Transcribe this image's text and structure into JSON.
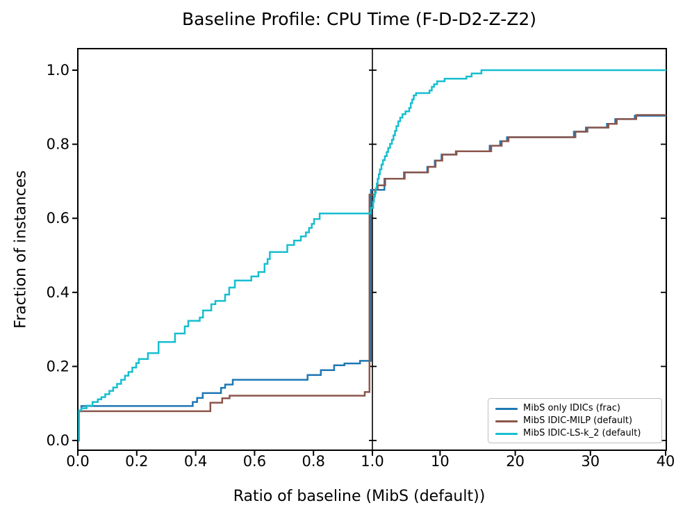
{
  "figure": {
    "title": "Baseline Profile: CPU Time (F-D-D2-Z-Z2)",
    "xlabel": "Ratio of baseline (MibS (default))",
    "ylabel": "Fraction of instances",
    "background_color": "#ffffff",
    "axis_color": "#000000"
  },
  "chart_data": {
    "type": "line",
    "subtype": "step-post performance profile with split x-axis",
    "title": "Baseline Profile: CPU Time (F-D-D2-Z-Z2)",
    "xlabel": "Ratio of baseline (MibS (default))",
    "ylabel": "Fraction of instances",
    "grid": false,
    "x_axis": {
      "left_panel": {
        "range": [
          0,
          1
        ],
        "scale": "linear",
        "ticks": [
          0.0,
          0.2,
          0.4,
          0.6,
          0.8,
          1.0
        ],
        "tick_labels": [
          "0.0",
          "0.2",
          "0.4",
          "0.6",
          "0.8",
          "1.0"
        ]
      },
      "right_panel": {
        "range": [
          1,
          40
        ],
        "scale": "linear",
        "ticks": [
          10,
          20,
          30,
          40
        ],
        "tick_labels": [
          "10",
          "20",
          "30",
          "40"
        ]
      }
    },
    "y_axis": {
      "range": [
        0,
        1
      ],
      "ticks": [
        0.0,
        0.2,
        0.4,
        0.6,
        0.8,
        1.0
      ],
      "tick_labels": [
        "0.0",
        "0.2",
        "0.4",
        "0.6",
        "0.8",
        "1.0"
      ],
      "ylim": [
        -0.026,
        1.058
      ]
    },
    "legend": {
      "position": "lower right",
      "entries": [
        {
          "label": "MibS only IDICs (frac)",
          "color": "#1f77b4"
        },
        {
          "label": "MibS IDIC-MILP (default)",
          "color": "#8c564b"
        },
        {
          "label": "MibS IDIC-LS-k_2 (default)",
          "color": "#17becf"
        }
      ]
    },
    "series": [
      {
        "name": "MibS only IDICs (frac)",
        "color": "#1f77b4",
        "steps": [
          [
            0.002,
            0
          ],
          [
            0.004,
            0.079
          ],
          [
            0.012,
            0.093
          ],
          [
            0.39,
            0.104
          ],
          [
            0.405,
            0.115
          ],
          [
            0.424,
            0.128
          ],
          [
            0.486,
            0.142
          ],
          [
            0.5,
            0.151
          ],
          [
            0.526,
            0.164
          ],
          [
            0.78,
            0.177
          ],
          [
            0.825,
            0.19
          ],
          [
            0.87,
            0.203
          ],
          [
            0.905,
            0.208
          ],
          [
            0.958,
            0.215
          ],
          [
            0.995,
            0.677
          ],
          [
            2.6,
            0.707
          ],
          [
            5.2,
            0.724
          ],
          [
            8.3,
            0.739
          ],
          [
            9.3,
            0.756
          ],
          [
            10.2,
            0.772
          ],
          [
            12.1,
            0.781
          ],
          [
            16.6,
            0.796
          ],
          [
            18.0,
            0.808
          ],
          [
            18.9,
            0.819
          ],
          [
            27.8,
            0.834
          ],
          [
            29.4,
            0.845
          ],
          [
            32.2,
            0.855
          ],
          [
            33.3,
            0.868
          ],
          [
            35.9,
            0.877
          ],
          [
            40,
            0.877
          ]
        ]
      },
      {
        "name": "MibS IDIC-MILP (default)",
        "color": "#8c564b",
        "steps": [
          [
            0.002,
            0
          ],
          [
            0.004,
            0.079
          ],
          [
            0.45,
            0.102
          ],
          [
            0.49,
            0.114
          ],
          [
            0.515,
            0.121
          ],
          [
            0.974,
            0.131
          ],
          [
            0.99,
            0.664
          ],
          [
            1.35,
            0.677
          ],
          [
            1.7,
            0.689
          ],
          [
            2.7,
            0.707
          ],
          [
            5.3,
            0.724
          ],
          [
            8.4,
            0.739
          ],
          [
            9.4,
            0.756
          ],
          [
            10.3,
            0.772
          ],
          [
            12.2,
            0.781
          ],
          [
            16.8,
            0.796
          ],
          [
            18.2,
            0.808
          ],
          [
            19.1,
            0.819
          ],
          [
            28.0,
            0.834
          ],
          [
            29.6,
            0.845
          ],
          [
            32.4,
            0.855
          ],
          [
            33.5,
            0.868
          ],
          [
            36.1,
            0.879
          ],
          [
            40,
            0.879
          ]
        ]
      },
      {
        "name": "MibS IDIC-LS-k_2 (default)",
        "color": "#17becf",
        "steps": [
          [
            0.002,
            0
          ],
          [
            0.004,
            0.081
          ],
          [
            0.012,
            0.087
          ],
          [
            0.03,
            0.094
          ],
          [
            0.05,
            0.104
          ],
          [
            0.068,
            0.111
          ],
          [
            0.08,
            0.117
          ],
          [
            0.093,
            0.125
          ],
          [
            0.107,
            0.134
          ],
          [
            0.12,
            0.143
          ],
          [
            0.133,
            0.153
          ],
          [
            0.147,
            0.164
          ],
          [
            0.16,
            0.175
          ],
          [
            0.172,
            0.185
          ],
          [
            0.185,
            0.197
          ],
          [
            0.198,
            0.209
          ],
          [
            0.207,
            0.22
          ],
          [
            0.238,
            0.236
          ],
          [
            0.274,
            0.266
          ],
          [
            0.33,
            0.289
          ],
          [
            0.363,
            0.308
          ],
          [
            0.375,
            0.323
          ],
          [
            0.414,
            0.332
          ],
          [
            0.425,
            0.351
          ],
          [
            0.453,
            0.368
          ],
          [
            0.467,
            0.377
          ],
          [
            0.5,
            0.394
          ],
          [
            0.514,
            0.413
          ],
          [
            0.533,
            0.432
          ],
          [
            0.589,
            0.443
          ],
          [
            0.613,
            0.455
          ],
          [
            0.634,
            0.477
          ],
          [
            0.644,
            0.49
          ],
          [
            0.652,
            0.509
          ],
          [
            0.711,
            0.528
          ],
          [
            0.734,
            0.54
          ],
          [
            0.757,
            0.551
          ],
          [
            0.774,
            0.562
          ],
          [
            0.785,
            0.574
          ],
          [
            0.794,
            0.585
          ],
          [
            0.802,
            0.598
          ],
          [
            0.821,
            0.613
          ],
          [
            0.995,
            0.628
          ],
          [
            1.1,
            0.645
          ],
          [
            1.2,
            0.658
          ],
          [
            1.32,
            0.668
          ],
          [
            1.45,
            0.681
          ],
          [
            1.58,
            0.694
          ],
          [
            1.7,
            0.707
          ],
          [
            1.85,
            0.719
          ],
          [
            2.0,
            0.732
          ],
          [
            2.2,
            0.745
          ],
          [
            2.4,
            0.757
          ],
          [
            2.65,
            0.768
          ],
          [
            2.9,
            0.779
          ],
          [
            3.1,
            0.79
          ],
          [
            3.35,
            0.801
          ],
          [
            3.6,
            0.812
          ],
          [
            3.8,
            0.824
          ],
          [
            4.0,
            0.836
          ],
          [
            4.2,
            0.849
          ],
          [
            4.45,
            0.862
          ],
          [
            4.7,
            0.872
          ],
          [
            5.0,
            0.881
          ],
          [
            5.4,
            0.889
          ],
          [
            5.9,
            0.898
          ],
          [
            6.1,
            0.911
          ],
          [
            6.3,
            0.921
          ],
          [
            6.5,
            0.932
          ],
          [
            6.8,
            0.938
          ],
          [
            8.6,
            0.945
          ],
          [
            8.9,
            0.955
          ],
          [
            9.2,
            0.962
          ],
          [
            9.6,
            0.97
          ],
          [
            10.6,
            0.977
          ],
          [
            13.5,
            0.983
          ],
          [
            14.2,
            0.991
          ],
          [
            15.5,
            1.0
          ],
          [
            40,
            1.0
          ]
        ]
      }
    ]
  }
}
